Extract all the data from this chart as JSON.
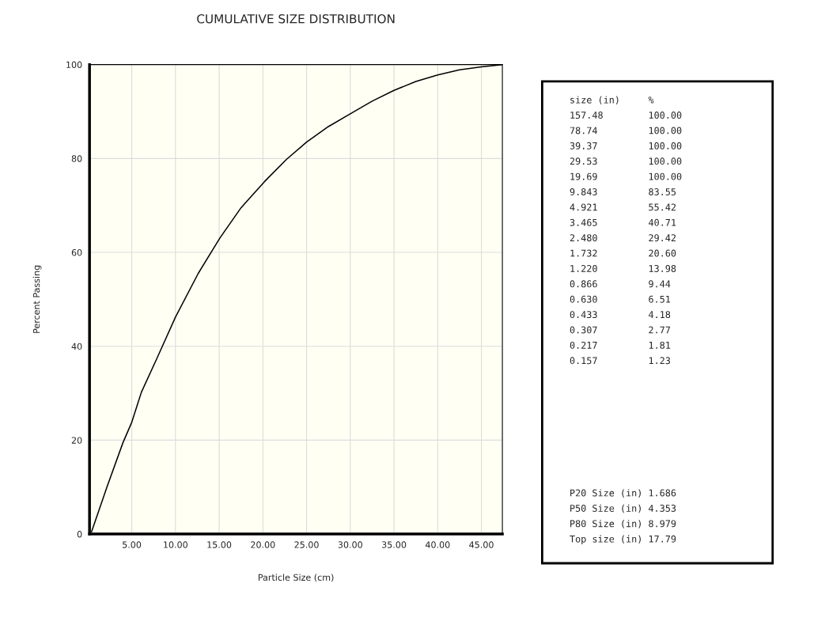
{
  "chart_data": {
    "type": "line",
    "title": "CUMULATIVE SIZE DISTRIBUTION",
    "xlabel": "Particle Size (cm)",
    "ylabel": "Percent Passing",
    "x": [
      0.4,
      2.2,
      4.0,
      5.0,
      6.1,
      7.9,
      10.0,
      12.6,
      15.1,
      17.5,
      20.2,
      22.7,
      25.0,
      27.5,
      30.0,
      32.5,
      35.0,
      37.5,
      40.0,
      42.5,
      45.0,
      47.4
    ],
    "series": [
      {
        "color": "#000000",
        "values": [
          0.5,
          10.2,
          19.5,
          23.8,
          30.2,
          37.5,
          46.2,
          55.5,
          63.1,
          69.5,
          75.1,
          79.8,
          83.5,
          86.8,
          89.5,
          92.2,
          94.5,
          96.4,
          97.8,
          98.9,
          99.5,
          100
        ]
      }
    ],
    "xlim": [
      0.17,
      47.4
    ],
    "ylim": [
      0,
      100
    ],
    "xticks": [
      {
        "value": 5,
        "label": "5.00"
      },
      {
        "value": 10,
        "label": "10.00"
      },
      {
        "value": 15,
        "label": "15.00"
      },
      {
        "value": 20,
        "label": "20.00"
      },
      {
        "value": 25,
        "label": "25.00"
      },
      {
        "value": 30,
        "label": "30.00"
      },
      {
        "value": 35,
        "label": "35.00"
      },
      {
        "value": 40,
        "label": "40.00"
      },
      {
        "value": 45,
        "label": "45.00"
      }
    ],
    "yticks": [
      0,
      20,
      40,
      60,
      80,
      100
    ],
    "grid": true,
    "legend": false,
    "marker": "none",
    "line_style": "solid",
    "annotations": [
      "size (in)     %",
      "157.48        100.00",
      "78.74         100.00",
      "39.37         100.00",
      "29.53         100.00",
      "19.69         100.00",
      "9.843         83.55",
      "4.921         55.42",
      "3.465         40.71",
      "2.480         29.42",
      "1.732         20.60",
      "1.220         13.98",
      "0.866         9.44",
      "0.630         6.51",
      "0.433         4.18",
      "0.307         2.77",
      "0.217         1.81",
      "0.157         1.23",
      "P20 Size (in) 1.686",
      "P50 Size (in) 4.353",
      "P80 Size (in) 8.979",
      "Top size (in) 17.79"
    ]
  }
}
